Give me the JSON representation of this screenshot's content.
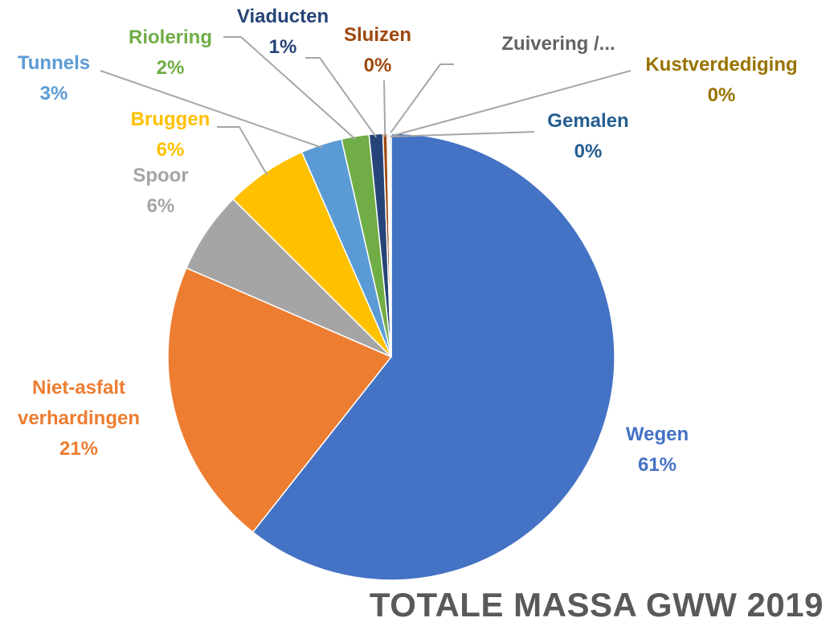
{
  "chart_data": {
    "type": "pie",
    "title": "TOTALE MASSA GWW 2019",
    "categories": [
      "Wegen",
      "Niet-asfalt verhardingen",
      "Spoor",
      "Bruggen",
      "Tunnels",
      "Riolering",
      "Viaducten",
      "Sluizen",
      "Zuivering /...",
      "Kustverdediging",
      "Gemalen"
    ],
    "values": [
      61,
      21,
      6,
      6,
      3,
      2,
      1,
      0.3,
      0.1,
      0.1,
      0.1
    ],
    "value_labels": [
      "61%",
      "21%",
      "6%",
      "6%",
      "3%",
      "2%",
      "1%",
      "0%",
      null,
      "0%",
      "0%"
    ],
    "colors": [
      "#4472c4",
      "#ed7d31",
      "#a5a5a5",
      "#ffc000",
      "#5b9bd5",
      "#70ad47",
      "#264478",
      "#9e480e",
      "#636363",
      "#997300",
      "#255e91"
    ]
  }
}
